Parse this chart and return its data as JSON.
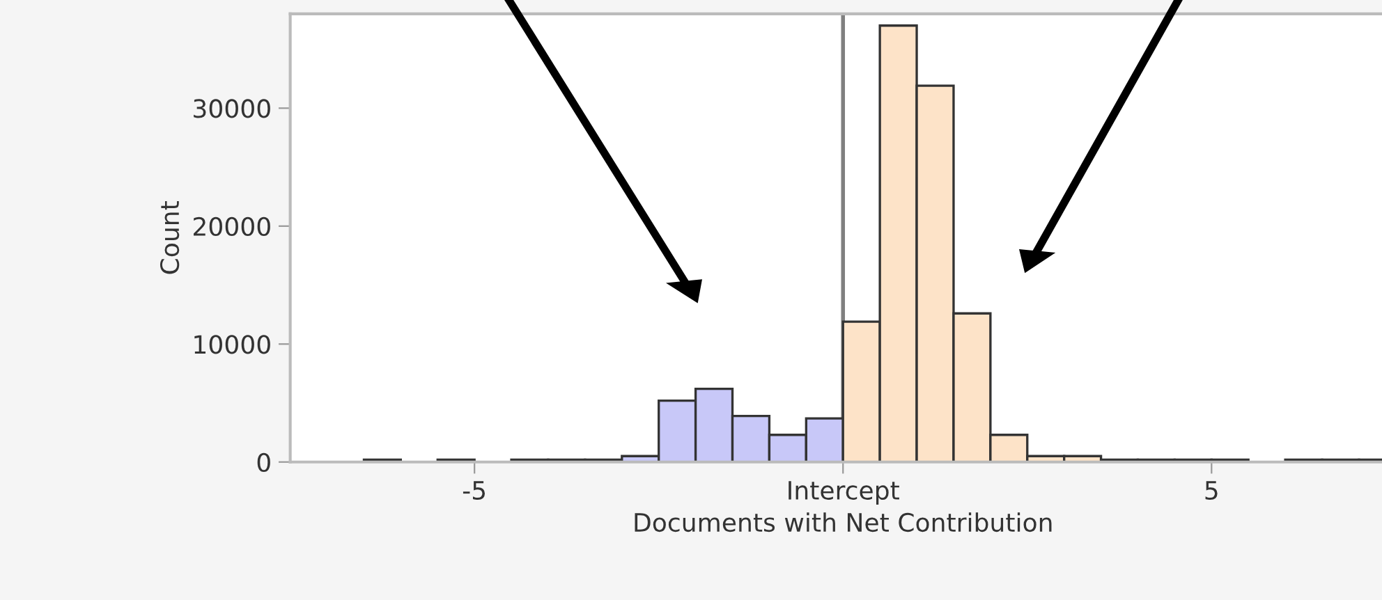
{
  "chart_data": {
    "type": "histogram",
    "xlabel": "Documents with Net Contribution",
    "ylabel": "Count",
    "bins": [
      -6.5,
      -6,
      -5.5,
      -5,
      -4.5,
      -4,
      -3.5,
      -3,
      -2.5,
      -2,
      -1.5,
      -1,
      -0.5,
      0,
      0.5,
      1,
      1.5,
      2,
      2.5,
      3,
      3.5,
      4,
      4.5,
      5,
      5.5,
      6,
      6.5,
      7,
      7.5
    ],
    "values": [
      200,
      null,
      200,
      null,
      200,
      200,
      200,
      500,
      5200,
      6200,
      3900,
      2300,
      3700,
      11900,
      37000,
      31900,
      12600,
      2300,
      500,
      500,
      200,
      200,
      200,
      200,
      null,
      200,
      200,
      200
    ],
    "colors": [
      "#c8c8f8",
      "#c8c8f8",
      "#c8c8f8",
      "#c8c8f8",
      "#c8c8f8",
      "#c8c8f8",
      "#c8c8f8",
      "#c8c8f8",
      "#c8c8f8",
      "#c8c8f8",
      "#c8c8f8",
      "#c8c8f8",
      "#c8c8f8",
      "#fde3c8",
      "#fde3c8",
      "#fde3c8",
      "#fde3c8",
      "#fde3c8",
      "#fde3c8",
      "#fde3c8",
      "#fde3c8",
      "#fde3c8",
      "#fde3c8",
      "#fde3c8",
      "#fde3c8",
      "#fde3c8",
      "#fde3c8",
      "#fde3c8"
    ],
    "xlim": [
      -7.5,
      7.5
    ],
    "ylim": [
      0,
      38000
    ],
    "xticks": [
      -5,
      {
        "value": 0,
        "label": "Intercept"
      },
      5
    ],
    "yticks": [
      0,
      10000,
      20000,
      30000
    ],
    "ref_lines": [
      {
        "axis": "x",
        "value": 0,
        "color": "#808080"
      }
    ],
    "grid": false
  }
}
